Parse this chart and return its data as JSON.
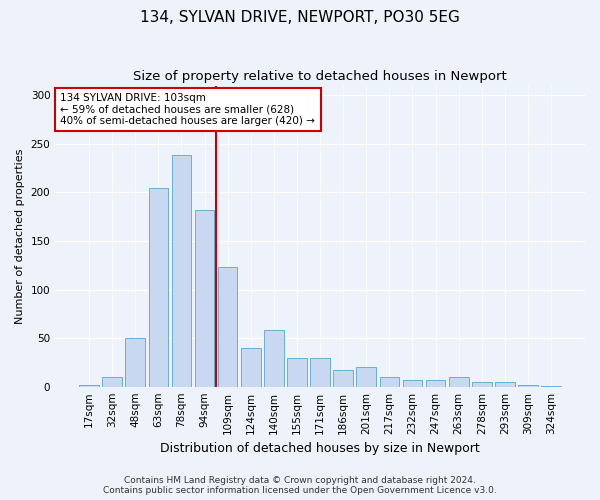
{
  "title1": "134, SYLVAN DRIVE, NEWPORT, PO30 5EG",
  "title2": "Size of property relative to detached houses in Newport",
  "xlabel": "Distribution of detached houses by size in Newport",
  "ylabel": "Number of detached properties",
  "categories": [
    "17sqm",
    "32sqm",
    "48sqm",
    "63sqm",
    "78sqm",
    "94sqm",
    "109sqm",
    "124sqm",
    "140sqm",
    "155sqm",
    "171sqm",
    "186sqm",
    "201sqm",
    "217sqm",
    "232sqm",
    "247sqm",
    "263sqm",
    "278sqm",
    "293sqm",
    "309sqm",
    "324sqm"
  ],
  "values": [
    2,
    10,
    50,
    205,
    238,
    182,
    123,
    40,
    58,
    30,
    30,
    17,
    20,
    10,
    7,
    7,
    10,
    5,
    5,
    2,
    1
  ],
  "bar_color": "#c8d8f0",
  "bar_edge_color": "#6baed6",
  "vline_x": 5.5,
  "vline_color": "#cc0000",
  "annotation_line1": "134 SYLVAN DRIVE: 103sqm",
  "annotation_line2": "← 59% of detached houses are smaller (628)",
  "annotation_line3": "40% of semi-detached houses are larger (420) →",
  "annotation_box_facecolor": "#ffffff",
  "annotation_box_edgecolor": "#cc0000",
  "ylim": [
    0,
    310
  ],
  "yticks": [
    0,
    50,
    100,
    150,
    200,
    250,
    300
  ],
  "bg_color": "#eef2fa",
  "plot_bg_color": "#eef2fa",
  "title1_fontsize": 11,
  "title2_fontsize": 9.5,
  "xlabel_fontsize": 9,
  "ylabel_fontsize": 8,
  "tick_fontsize": 7.5,
  "annot_fontsize": 7.5,
  "footer_fontsize": 6.5,
  "footer1": "Contains HM Land Registry data © Crown copyright and database right 2024.",
  "footer2": "Contains public sector information licensed under the Open Government Licence v3.0."
}
